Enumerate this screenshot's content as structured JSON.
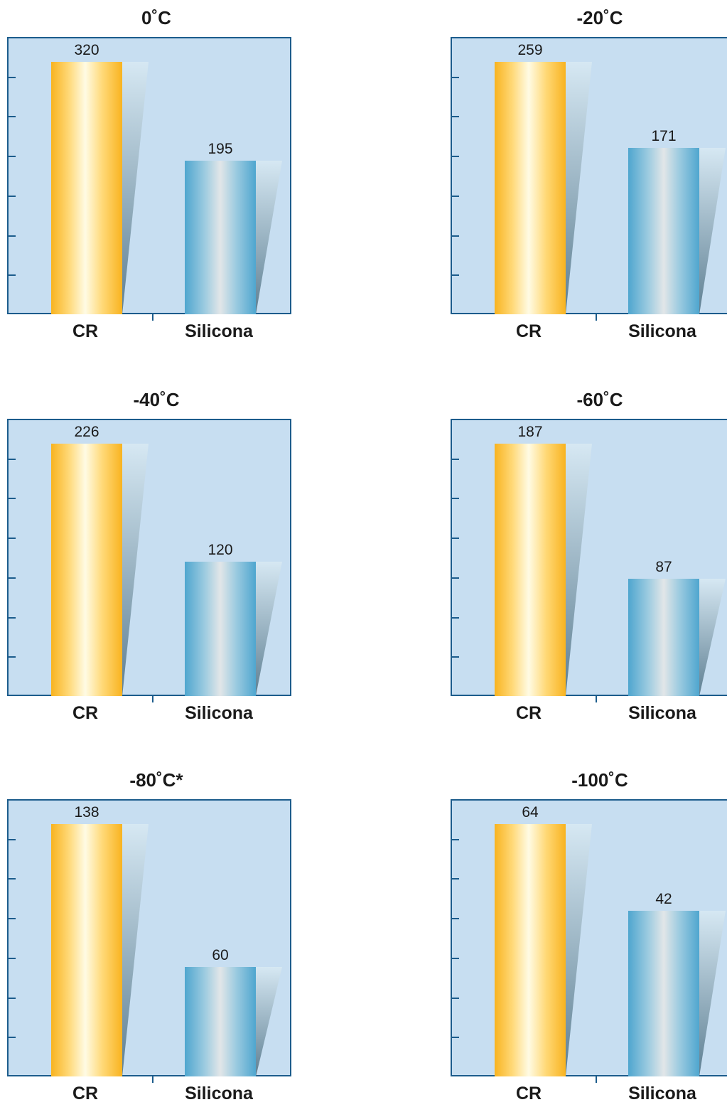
{
  "colors": {
    "plot_bg": "#c7def1",
    "axis": "#1c5c8c",
    "cr_bar": "#f8b320",
    "silicona_bar": "#4fa6cf"
  },
  "chart_data": [
    {
      "type": "bar",
      "title": "0˚C",
      "categories": [
        "CR",
        "Silicona"
      ],
      "values": [
        320,
        195
      ],
      "value_labels": [
        "320",
        "195"
      ]
    },
    {
      "type": "bar",
      "title": "-20˚C",
      "categories": [
        "CR",
        "Silicona"
      ],
      "values": [
        259,
        171
      ],
      "value_labels": [
        "259",
        "171"
      ]
    },
    {
      "type": "bar",
      "title": "-40˚C",
      "categories": [
        "CR",
        "Silicona"
      ],
      "values": [
        226,
        120
      ],
      "value_labels": [
        "226",
        "120"
      ]
    },
    {
      "type": "bar",
      "title": "-60˚C",
      "categories": [
        "CR",
        "Silicona"
      ],
      "values": [
        187,
        87
      ],
      "value_labels": [
        "187",
        "87"
      ]
    },
    {
      "type": "bar",
      "title": "-80˚C*",
      "categories": [
        "CR",
        "Silicona"
      ],
      "values": [
        138,
        60
      ],
      "value_labels": [
        "138",
        "60"
      ]
    },
    {
      "type": "bar",
      "title": "-100˚C",
      "categories": [
        "CR",
        "Silicona"
      ],
      "values": [
        64,
        42
      ],
      "value_labels": [
        "64",
        "42"
      ]
    }
  ]
}
